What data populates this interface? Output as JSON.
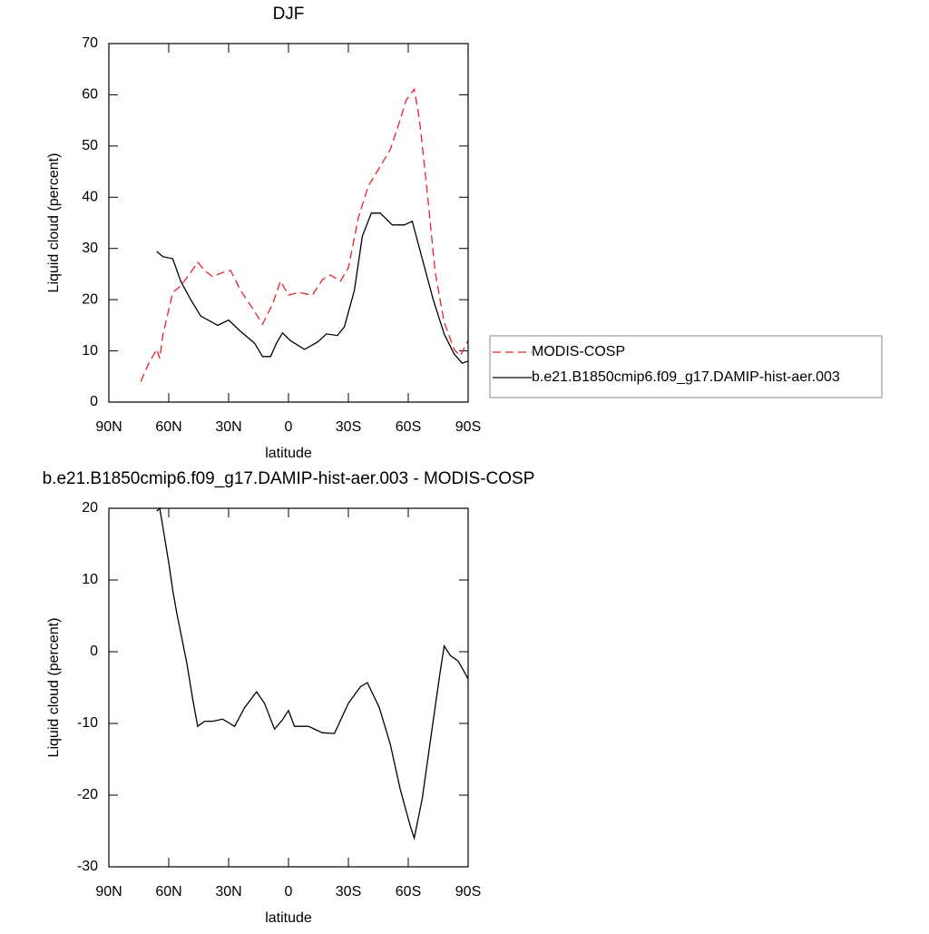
{
  "chart_data": [
    {
      "type": "line",
      "title": "DJF",
      "xlabel": "latitude",
      "ylabel": "Liquid cloud (percent)",
      "xlim": [
        90,
        -90
      ],
      "xticks": [
        {
          "value": 90,
          "label": "90N"
        },
        {
          "value": 60,
          "label": "60N"
        },
        {
          "value": 30,
          "label": "30N"
        },
        0,
        {
          "value": -30,
          "label": "30S"
        },
        {
          "value": -60,
          "label": "60S"
        },
        {
          "value": -90,
          "label": "90S"
        }
      ],
      "ylim": [
        0,
        70
      ],
      "yticks": [
        0,
        10,
        20,
        30,
        40,
        50,
        60,
        70
      ],
      "legend": "outside-right",
      "series": [
        {
          "name": "MODIS-COSP",
          "color": "#e8202a",
          "dash": true,
          "x": [
            74,
            70,
            66,
            64.5,
            63,
            58,
            54,
            49,
            45.5,
            42,
            38,
            33,
            29,
            24,
            17,
            13,
            8,
            4,
            0,
            -5,
            -12,
            -17,
            -21,
            -26,
            -30,
            -35,
            -40,
            -45.5,
            -51,
            -55.5,
            -59,
            -63,
            -65.5,
            -69,
            -73.5,
            -78,
            -83,
            -86,
            -90
          ],
          "values": [
            4,
            7.6,
            10.3,
            8.5,
            13,
            21.4,
            22.7,
            25.3,
            27.3,
            25.7,
            24.5,
            25.3,
            25.7,
            21.8,
            17.7,
            15.2,
            19.1,
            23.6,
            20.9,
            21.4,
            20.9,
            23.9,
            24.8,
            23.6,
            26.2,
            36,
            42.2,
            45.7,
            49.3,
            54.6,
            59,
            61.1,
            55.5,
            43,
            25.3,
            15.6,
            10.3,
            9,
            12
          ]
        },
        {
          "name": "b.e21.B1850cmip6.f09_g17.DAMIP-hist-aer.003",
          "color": "#000000",
          "dash": false,
          "x": [
            66,
            63,
            58,
            54,
            49,
            44,
            35.5,
            30,
            24,
            17,
            13,
            9,
            6,
            3,
            -1,
            -8,
            -14.5,
            -19,
            -24.5,
            -28,
            -33,
            -37,
            -41.5,
            -46,
            -52,
            -58,
            -62,
            -67,
            -72.5,
            -78,
            -83,
            -87,
            -90
          ],
          "values": [
            29.4,
            28.4,
            28,
            23.6,
            20,
            16.8,
            15,
            16,
            13.8,
            11.5,
            8.9,
            8.9,
            11.5,
            13.5,
            12,
            10.3,
            11.7,
            13.3,
            13,
            14.7,
            21.8,
            32.4,
            36.9,
            36.9,
            34.6,
            34.6,
            35.3,
            28,
            20,
            13.3,
            9.4,
            7.6,
            8
          ]
        }
      ]
    },
    {
      "type": "line",
      "title": "b.e21.B1850cmip6.f09_g17.DAMIP-hist-aer.003 - MODIS-COSP",
      "xlabel": "latitude",
      "ylabel": "Liquid cloud (percent)",
      "xlim": [
        90,
        -90
      ],
      "xticks": [
        {
          "value": 90,
          "label": "90N"
        },
        {
          "value": 60,
          "label": "60N"
        },
        {
          "value": 30,
          "label": "30N"
        },
        0,
        {
          "value": -30,
          "label": "30S"
        },
        {
          "value": -60,
          "label": "60S"
        },
        {
          "value": -90,
          "label": "90S"
        }
      ],
      "ylim": [
        -30,
        20
      ],
      "yticks": [
        -30,
        -20,
        -10,
        0,
        10,
        20
      ],
      "series": [
        {
          "color": "#000000",
          "dash": false,
          "x": [
            66,
            64.5,
            63,
            60,
            58,
            56,
            51,
            48,
            45.5,
            42,
            38,
            33,
            27,
            22,
            16,
            12,
            7,
            3,
            0,
            -3,
            -10,
            -17,
            -23,
            -30,
            -36,
            -39.5,
            -45.5,
            -51,
            -56,
            -61,
            -63,
            -67,
            -71.5,
            -76,
            -78,
            -81,
            -85,
            -88,
            -90
          ],
          "values": [
            19.6,
            20,
            17.5,
            12.4,
            8.6,
            5.4,
            -1.5,
            -6.6,
            -10.4,
            -9.7,
            -9.7,
            -9.4,
            -10.4,
            -7.8,
            -5.6,
            -7.2,
            -10.8,
            -9.5,
            -8.2,
            -10.4,
            -10.4,
            -11.3,
            -11.4,
            -7.2,
            -4.9,
            -4.3,
            -7.8,
            -12.9,
            -19.2,
            -24.3,
            -26,
            -20.5,
            -11.6,
            -2.8,
            0.8,
            -0.5,
            -1.3,
            -2.8,
            -3.8
          ]
        }
      ]
    }
  ]
}
